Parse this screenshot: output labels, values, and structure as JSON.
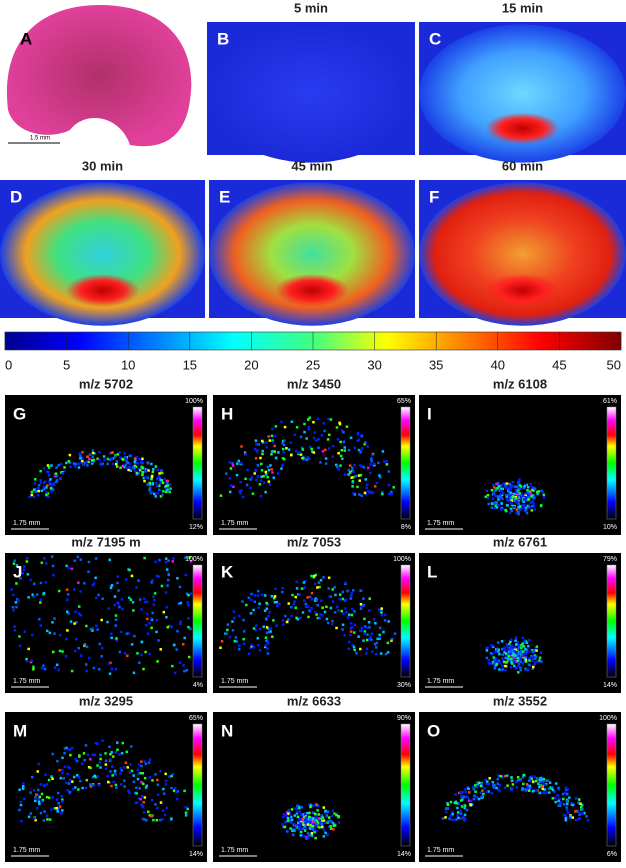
{
  "time_panels": [
    {
      "label": "A",
      "scale": "1.5 mm"
    },
    {
      "label": "B",
      "title": "5 min"
    },
    {
      "label": "C",
      "title": "15 min"
    },
    {
      "label": "D",
      "title": "30 min"
    },
    {
      "label": "E",
      "title": "45 min"
    },
    {
      "label": "F",
      "title": "60 min"
    }
  ],
  "colorbar": {
    "ticks": [
      0,
      5,
      10,
      15,
      20,
      25,
      30,
      35,
      40,
      45,
      50
    ]
  },
  "ms_panels": [
    {
      "label": "G",
      "title": "m/z 5702",
      "max": "100%",
      "min": "12%",
      "scale": "1.75 mm"
    },
    {
      "label": "H",
      "title": "m/z 3450",
      "max": "65%",
      "min": "8%",
      "scale": "1.75 mm"
    },
    {
      "label": "I",
      "title": "m/z 6108",
      "max": "61%",
      "min": "10%",
      "scale": "1.75 mm"
    },
    {
      "label": "J",
      "title": "m/z 7195 m",
      "max": "100%",
      "min": "4%",
      "scale": "1.75 mm"
    },
    {
      "label": "K",
      "title": "m/z 7053",
      "max": "100%",
      "min": "30%",
      "scale": "1.75 mm"
    },
    {
      "label": "L",
      "title": "m/z 6761",
      "max": "79%",
      "min": "14%",
      "scale": "1.75 mm"
    },
    {
      "label": "M",
      "title": "m/z 3295",
      "max": "65%",
      "min": "14%",
      "scale": "1.75 mm"
    },
    {
      "label": "N",
      "title": "m/z 6633",
      "max": "90%",
      "min": "14%",
      "scale": "1.75 mm"
    },
    {
      "label": "O",
      "title": "m/z 3552",
      "max": "100%",
      "min": "6%",
      "scale": "1.75 mm"
    }
  ]
}
